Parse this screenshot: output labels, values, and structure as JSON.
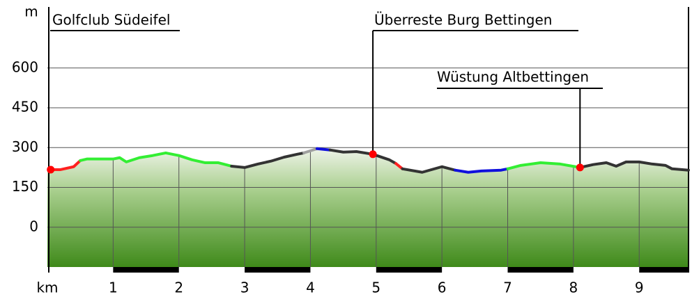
{
  "chart_data": {
    "type": "elevation-profile",
    "ylabel": "m",
    "xlabel": "km",
    "xlim": [
      0,
      9.75
    ],
    "ylim": [
      -150,
      830
    ],
    "xticks": [
      1,
      2,
      3,
      4,
      5,
      6,
      7,
      8,
      9
    ],
    "yticks": [
      0,
      150,
      300,
      450,
      600
    ],
    "grid": true,
    "segments": [
      {
        "color": "#ff2020",
        "x": [
          0.05,
          0.2,
          0.4,
          0.5
        ],
        "values": [
          217,
          217,
          228,
          251
        ]
      },
      {
        "color": "#33ee33",
        "x": [
          0.5,
          0.6,
          1.0,
          1.1,
          1.2,
          1.4,
          1.6,
          1.8,
          2.0,
          2.2,
          2.4,
          2.6,
          2.8
        ],
        "values": [
          251,
          257,
          257,
          262,
          246,
          262,
          270,
          280,
          270,
          254,
          243,
          243,
          230
        ]
      },
      {
        "color": "#333333",
        "x": [
          2.8,
          3.0,
          3.2,
          3.4,
          3.6,
          3.8,
          3.9
        ],
        "values": [
          230,
          225,
          238,
          249,
          264,
          275,
          280
        ]
      },
      {
        "color": "#a0a0a0",
        "x": [
          3.9,
          4.0,
          4.1
        ],
        "values": [
          280,
          288,
          296
        ]
      },
      {
        "color": "#1010dd",
        "x": [
          4.1,
          4.3
        ],
        "values": [
          296,
          291
        ]
      },
      {
        "color": "#333333",
        "x": [
          4.3,
          4.5,
          4.7,
          4.95,
          5.2,
          5.3
        ],
        "values": [
          291,
          283,
          285,
          275,
          254,
          240
        ]
      },
      {
        "color": "#ff2020",
        "x": [
          5.3,
          5.4
        ],
        "values": [
          240,
          220
        ]
      },
      {
        "color": "#333333",
        "x": [
          5.4,
          5.7,
          6.0,
          6.2
        ],
        "values": [
          220,
          207,
          228,
          215
        ]
      },
      {
        "color": "#1010dd",
        "x": [
          6.2,
          6.4,
          6.6,
          6.9,
          7.0
        ],
        "values": [
          215,
          207,
          212,
          215,
          220
        ]
      },
      {
        "color": "#33ee33",
        "x": [
          7.0,
          7.2,
          7.5,
          7.8,
          8.1
        ],
        "values": [
          220,
          233,
          243,
          238,
          225
        ]
      },
      {
        "color": "#333333",
        "x": [
          8.1,
          8.3,
          8.5,
          8.65,
          8.8,
          9.0,
          9.2,
          9.4,
          9.5,
          9.75
        ],
        "values": [
          225,
          236,
          243,
          230,
          246,
          246,
          238,
          233,
          220,
          215
        ]
      }
    ],
    "annotations": [
      {
        "label": "Golfclub Südeifel",
        "x": 0.05,
        "y": 217,
        "color": "#ff0000"
      },
      {
        "label": "Überreste Burg Bettingen",
        "x": 4.95,
        "y": 275,
        "color": "#ff0000"
      },
      {
        "label": "Wüstung Altbettingen",
        "x": 8.1,
        "y": 225,
        "color": "#ff0000"
      }
    ]
  }
}
